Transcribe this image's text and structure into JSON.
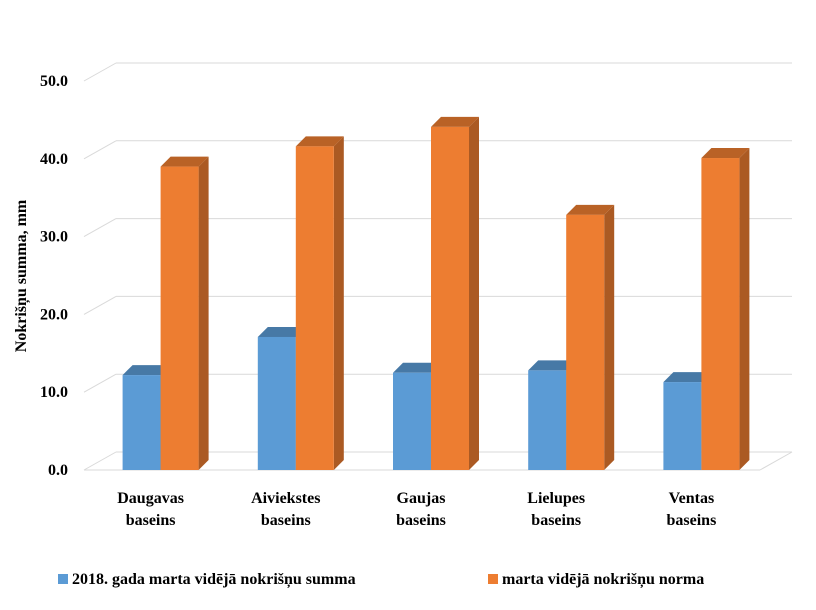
{
  "chart_data": {
    "type": "bar",
    "title": "",
    "xlabel": "",
    "ylabel": "Nokrišņu summa, mm",
    "ylim": [
      0,
      50
    ],
    "y_ticks": [
      "0.0",
      "10.0",
      "20.0",
      "30.0",
      "40.0",
      "50.0"
    ],
    "grid": true,
    "legend_position": "bottom",
    "categories": [
      [
        "Daugavas",
        "baseins"
      ],
      [
        "Aiviekstes",
        "baseins"
      ],
      [
        "Gaujas",
        "baseins"
      ],
      [
        "Lielupes",
        "baseins"
      ],
      [
        "Ventas",
        "baseins"
      ]
    ],
    "series": [
      {
        "name": "2018. gada marta vidējā nokrišņu summa",
        "color": "#5B9BD5",
        "values": [
          12.2,
          17.1,
          12.5,
          12.8,
          11.3
        ]
      },
      {
        "name": "marta vidējā nokrišņu norma",
        "color": "#ED7D31",
        "values": [
          39.0,
          41.6,
          44.1,
          32.8,
          40.1
        ]
      }
    ]
  }
}
